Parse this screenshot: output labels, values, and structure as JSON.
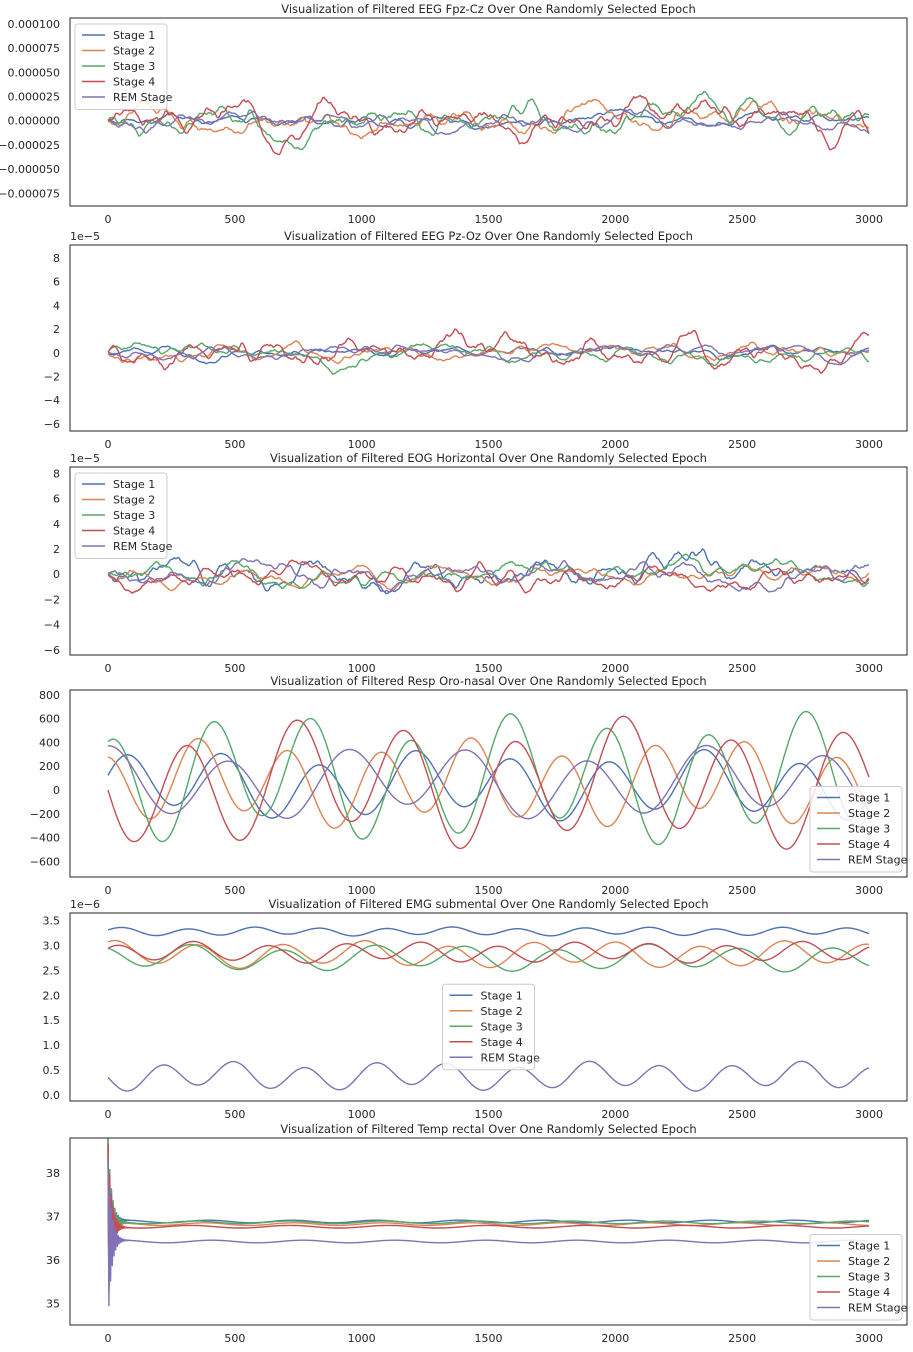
{
  "colors": {
    "stage1": "#4c72b0",
    "stage2": "#dd8452",
    "stage3": "#55a868",
    "stage4": "#c44e52",
    "rem": "#8172b3",
    "axes": "#262626",
    "text": "#262626",
    "background": "#ffffff"
  },
  "chart_data": [
    {
      "type": "line",
      "title": "Visualization of Filtered EEG Fpz-Cz Over One Randomly Selected Epoch",
      "xlabel": "",
      "ylabel": "",
      "xlim": [
        -150,
        3150
      ],
      "ylim": [
        -8.8e-05,
        0.000106
      ],
      "x_ticks": [
        0,
        500,
        1000,
        1500,
        2000,
        2500,
        3000
      ],
      "y_ticks": [
        -7.5e-05,
        -5e-05,
        -2.5e-05,
        0,
        2.5e-05,
        5e-05,
        7.5e-05,
        0.0001
      ],
      "y_tick_labels": [
        "−0.000075",
        "−0.000050",
        "−0.000025",
        "0.000000",
        "0.000025",
        "0.000050",
        "0.000075",
        "0.000100"
      ],
      "offset_text": "",
      "legend_loc": "upper-left",
      "signal": "noise",
      "series": [
        {
          "name": "Stage 1",
          "center": 0,
          "amplitude": 1.2e-05,
          "seed": 11
        },
        {
          "name": "Stage 2",
          "center": 0,
          "amplitude": 2.2e-05,
          "seed": 12
        },
        {
          "name": "Stage 3",
          "center": 0,
          "amplitude": 3e-05,
          "seed": 13
        },
        {
          "name": "Stage 4",
          "center": 0,
          "amplitude": 3.5e-05,
          "seed": 14
        },
        {
          "name": "REM Stage",
          "center": 0,
          "amplitude": 1.4e-05,
          "seed": 15
        }
      ]
    },
    {
      "type": "line",
      "title": "Visualization of Filtered EEG Pz-Oz Over One Randomly Selected Epoch",
      "xlabel": "",
      "ylabel": "",
      "xlim": [
        -150,
        3150
      ],
      "ylim": [
        -6.6,
        9.1
      ],
      "x_ticks": [
        0,
        500,
        1000,
        1500,
        2000,
        2500,
        3000
      ],
      "y_ticks": [
        -6,
        -4,
        -2,
        0,
        2,
        4,
        6,
        8
      ],
      "y_tick_labels": [
        "−6",
        "−4",
        "−2",
        "0",
        "2",
        "4",
        "6",
        "8"
      ],
      "offset_text": "1e−5",
      "legend_loc": "none",
      "signal": "noise",
      "series": [
        {
          "name": "Stage 1",
          "center": 0,
          "amplitude": 0.9,
          "seed": 21
        },
        {
          "name": "Stage 2",
          "center": 0,
          "amplitude": 1.0,
          "seed": 22
        },
        {
          "name": "Stage 3",
          "center": 0,
          "amplitude": 1.8,
          "seed": 23
        },
        {
          "name": "Stage 4",
          "center": 0,
          "amplitude": 2.0,
          "seed": 24
        },
        {
          "name": "REM Stage",
          "center": 0,
          "amplitude": 1.0,
          "seed": 25
        }
      ]
    },
    {
      "type": "line",
      "title": "Visualization of Filtered EOG Horizontal Over One Randomly Selected Epoch",
      "xlabel": "",
      "ylabel": "",
      "xlim": [
        -150,
        3150
      ],
      "ylim": [
        -6.4,
        8.5
      ],
      "x_ticks": [
        0,
        500,
        1000,
        1500,
        2000,
        2500,
        3000
      ],
      "y_ticks": [
        -6,
        -4,
        -2,
        0,
        2,
        4,
        6,
        8
      ],
      "y_tick_labels": [
        "−6",
        "−4",
        "−2",
        "0",
        "2",
        "4",
        "6",
        "8"
      ],
      "offset_text": "1e−5",
      "legend_loc": "upper-left",
      "signal": "noise",
      "series": [
        {
          "name": "Stage 1",
          "center": 0,
          "amplitude": 2.0,
          "seed": 31
        },
        {
          "name": "Stage 2",
          "center": 0,
          "amplitude": 1.3,
          "seed": 32
        },
        {
          "name": "Stage 3",
          "center": 0,
          "amplitude": 1.6,
          "seed": 33
        },
        {
          "name": "Stage 4",
          "center": 0,
          "amplitude": 1.5,
          "seed": 34
        },
        {
          "name": "REM Stage",
          "center": 0,
          "amplitude": 1.4,
          "seed": 35
        }
      ]
    },
    {
      "type": "line",
      "title": "Visualization of Filtered Resp Oro-nasal Over One Randomly Selected Epoch",
      "xlabel": "",
      "ylabel": "",
      "xlim": [
        -150,
        3150
      ],
      "ylim": [
        -730,
        840
      ],
      "x_ticks": [
        0,
        500,
        1000,
        1500,
        2000,
        2500,
        3000
      ],
      "y_ticks": [
        -600,
        -400,
        -200,
        0,
        200,
        400,
        600,
        800
      ],
      "y_tick_labels": [
        "−600",
        "−400",
        "−200",
        "0",
        "200",
        "400",
        "600",
        "800"
      ],
      "offset_text": "",
      "legend_loc": "lower-right",
      "signal": "wave",
      "series": [
        {
          "name": "Stage 1",
          "center": 40,
          "amplitude": 300,
          "period": 380,
          "phase": 0.4,
          "seed": 41
        },
        {
          "name": "Stage 2",
          "center": 60,
          "amplitude": 380,
          "period": 360,
          "phase": 1.7,
          "seed": 42
        },
        {
          "name": "Stage 3",
          "center": 100,
          "amplitude": 560,
          "period": 390,
          "phase": 1.2,
          "seed": 43
        },
        {
          "name": "Stage 4",
          "center": 60,
          "amplitude": 560,
          "period": 430,
          "phase": 3.3,
          "seed": 44
        },
        {
          "name": "REM Stage",
          "center": 60,
          "amplitude": 320,
          "period": 470,
          "phase": 1.5,
          "seed": 45
        }
      ]
    },
    {
      "type": "line",
      "title": "Visualization of Filtered EMG submental Over One Randomly Selected Epoch",
      "xlabel": "",
      "ylabel": "",
      "xlim": [
        -150,
        3150
      ],
      "ylim": [
        -0.12,
        3.65
      ],
      "x_ticks": [
        0,
        500,
        1000,
        1500,
        2000,
        2500,
        3000
      ],
      "y_ticks": [
        0,
        0.5,
        1,
        1.5,
        2,
        2.5,
        3,
        3.5
      ],
      "y_tick_labels": [
        "0.0",
        "0.5",
        "1.0",
        "1.5",
        "2.0",
        "2.5",
        "3.0",
        "3.5"
      ],
      "offset_text": "1e−6",
      "legend_loc": "center",
      "signal": "wave",
      "series": [
        {
          "name": "Stage 1",
          "center": 3.28,
          "amplitude": 0.09,
          "period": 260,
          "phase": 0.2,
          "seed": 51
        },
        {
          "name": "Stage 2",
          "center": 2.82,
          "amplitude": 0.28,
          "period": 330,
          "phase": 1.1,
          "seed": 52
        },
        {
          "name": "Stage 3",
          "center": 2.75,
          "amplitude": 0.28,
          "period": 360,
          "phase": 2.1,
          "seed": 53
        },
        {
          "name": "Stage 4",
          "center": 2.86,
          "amplitude": 0.22,
          "period": 300,
          "phase": 0.8,
          "seed": 54
        },
        {
          "name": "REM Stage",
          "center": 0.38,
          "amplitude": 0.3,
          "period": 280,
          "phase": 3.0,
          "seed": 55
        }
      ]
    },
    {
      "type": "line",
      "title": "Visualization of Filtered Temp rectal Over One Randomly Selected Epoch",
      "xlabel": "",
      "ylabel": "",
      "xlim": [
        -150,
        3150
      ],
      "ylim": [
        34.5,
        38.8
      ],
      "x_ticks": [
        0,
        500,
        1000,
        1500,
        2000,
        2500,
        3000
      ],
      "y_ticks": [
        35,
        36,
        37,
        38
      ],
      "y_tick_labels": [
        "35",
        "36",
        "37",
        "38"
      ],
      "offset_text": "",
      "legend_loc": "lower-right",
      "signal": "decay",
      "series": [
        {
          "name": "Stage 1",
          "center": 36.88,
          "amplitude": 0.03,
          "period": 330,
          "phase": 0.3,
          "seed": 61
        },
        {
          "name": "Stage 2",
          "center": 36.82,
          "amplitude": 0.03,
          "period": 350,
          "phase": 1.0,
          "seed": 62
        },
        {
          "name": "Stage 3",
          "center": 36.86,
          "amplitude": 0.03,
          "period": 370,
          "phase": 2.0,
          "seed": 63
        },
        {
          "name": "Stage 4",
          "center": 36.76,
          "amplitude": 0.03,
          "period": 390,
          "phase": 2.6,
          "seed": 64
        },
        {
          "name": "REM Stage",
          "center": 36.42,
          "amplitude": 0.03,
          "period": 360,
          "phase": 0.7,
          "seed": 65
        }
      ]
    }
  ]
}
